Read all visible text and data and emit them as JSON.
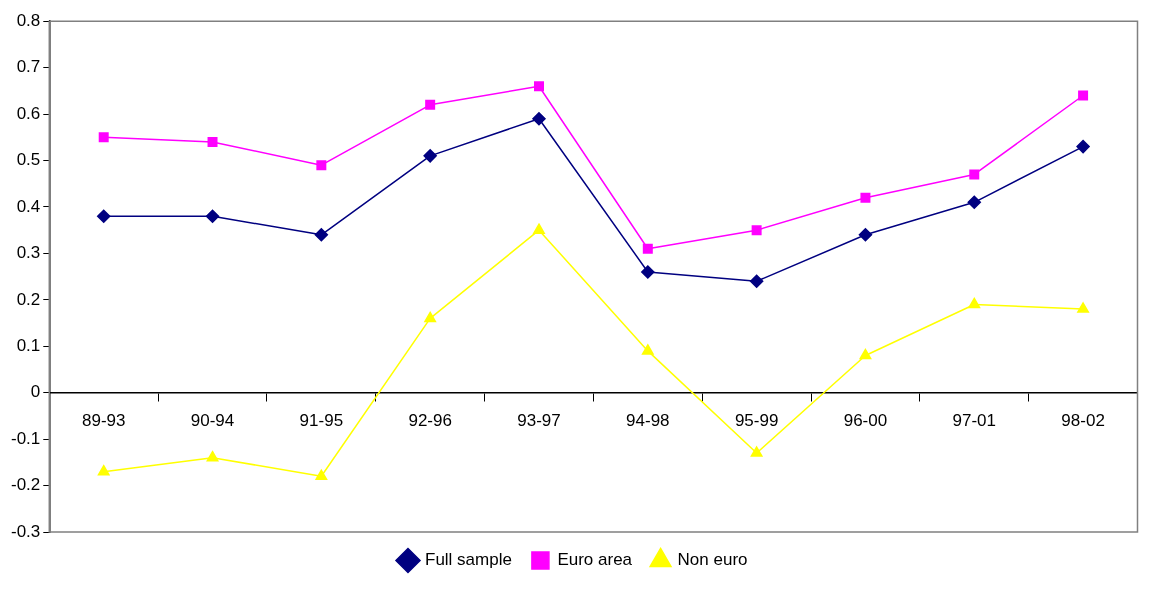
{
  "chart_data": {
    "type": "line",
    "categories": [
      "89-93",
      "90-94",
      "91-95",
      "92-96",
      "93-97",
      "94-98",
      "95-99",
      "96-00",
      "97-01",
      "98-02"
    ],
    "series": [
      {
        "name": "Full sample",
        "color": "#000080",
        "marker": "diamond",
        "values": [
          0.38,
          0.38,
          0.34,
          0.51,
          0.59,
          0.26,
          0.24,
          0.34,
          0.41,
          0.53
        ]
      },
      {
        "name": "Euro area",
        "color": "#ff00ff",
        "marker": "square",
        "values": [
          0.55,
          0.54,
          0.49,
          0.62,
          0.66,
          0.31,
          0.35,
          0.42,
          0.47,
          0.64
        ]
      },
      {
        "name": "Non euro",
        "color": "#ffff00",
        "marker": "triangle",
        "values": [
          -0.17,
          -0.14,
          -0.18,
          0.16,
          0.35,
          0.09,
          -0.13,
          0.08,
          0.19,
          0.18
        ]
      }
    ],
    "ylim": [
      -0.3,
      0.8
    ],
    "yticks": [
      -0.3,
      -0.2,
      -0.1,
      0,
      0.1,
      0.2,
      0.3,
      0.4,
      0.5,
      0.6,
      0.7,
      0.8
    ],
    "grid": false,
    "legend": "bottom",
    "line_style": "solid"
  }
}
